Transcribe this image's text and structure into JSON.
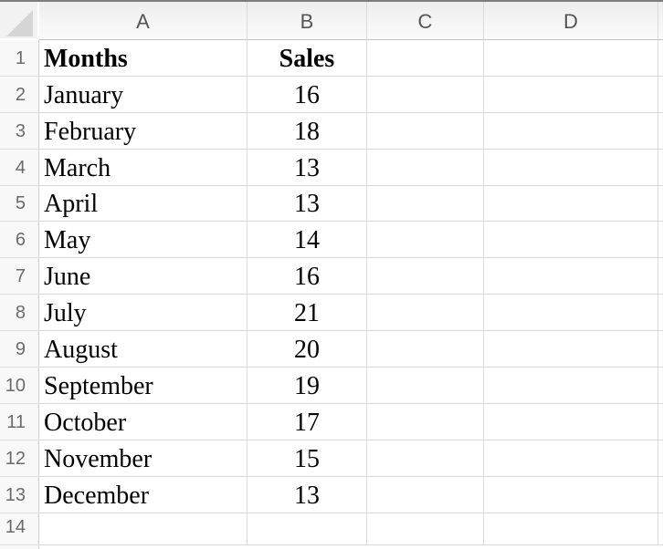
{
  "sheet": {
    "column_headers": [
      "A",
      "B",
      "C",
      "D"
    ],
    "row_headers": [
      "1",
      "2",
      "3",
      "4",
      "5",
      "6",
      "7",
      "8",
      "9",
      "10",
      "11",
      "12",
      "13",
      "14"
    ],
    "table": {
      "month_header": "Months",
      "sales_header": "Sales",
      "records": [
        {
          "month": "January",
          "sales": 16
        },
        {
          "month": "February",
          "sales": 18
        },
        {
          "month": "March",
          "sales": 13
        },
        {
          "month": "April",
          "sales": 13
        },
        {
          "month": "May",
          "sales": 14
        },
        {
          "month": "June",
          "sales": 16
        },
        {
          "month": "July",
          "sales": 21
        },
        {
          "month": "August",
          "sales": 20
        },
        {
          "month": "September",
          "sales": 19
        },
        {
          "month": "October",
          "sales": 17
        },
        {
          "month": "November",
          "sales": 15
        },
        {
          "month": "December",
          "sales": 13
        }
      ]
    }
  },
  "icons": {
    "select_all_triangle": "triangle-bottom-right"
  },
  "colors": {
    "top_border": "#7d7d7d",
    "header_background": "#f2f2f2",
    "header_text": "#555555",
    "row_header_text": "#6a6a6a",
    "grid_line": "#d8d8d8",
    "header_bottom_border": "#c2c2c2",
    "select_all_triangle": "#d5d5d5",
    "cell_text": "#000000",
    "cell_background": "#ffffff"
  }
}
